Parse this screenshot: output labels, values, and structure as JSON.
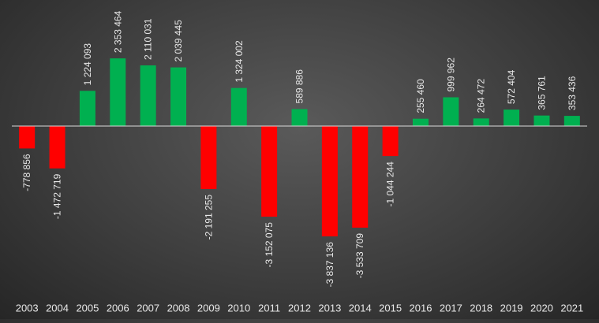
{
  "chart_data": {
    "type": "bar",
    "title": "",
    "xlabel": "",
    "ylabel": "",
    "legend": "none",
    "grid": false,
    "ylim": [
      -4000000,
      4000000
    ],
    "categories": [
      "2003",
      "2004",
      "2005",
      "2006",
      "2007",
      "2008",
      "2009",
      "2010",
      "2011",
      "2012",
      "2013",
      "2014",
      "2015",
      "2016",
      "2017",
      "2018",
      "2019",
      "2020",
      "2021"
    ],
    "values": [
      -778856,
      -1472719,
      1224093,
      2353464,
      2110031,
      2039445,
      -2191255,
      1324002,
      -3152075,
      589886,
      -3837136,
      -3533709,
      -1044244,
      255460,
      999962,
      264472,
      572404,
      365761,
      353436
    ],
    "labels": [
      "-778 856",
      "-1 472 719",
      "1 224 093",
      "2 353 464",
      "2 110 031",
      "2 039 445",
      "-2 191 255",
      "1 324 002",
      "-3 152 075",
      "589 886",
      "-3 837 136",
      "-3 533 709",
      "-1 044 244",
      "255 460",
      "999 962",
      "264 472",
      "572 404",
      "365 761",
      "353 436"
    ],
    "colors": {
      "positive": "#00b050",
      "negative": "#ff0000",
      "axis": "#d9d9d9",
      "text": "#e8e8e8"
    }
  }
}
